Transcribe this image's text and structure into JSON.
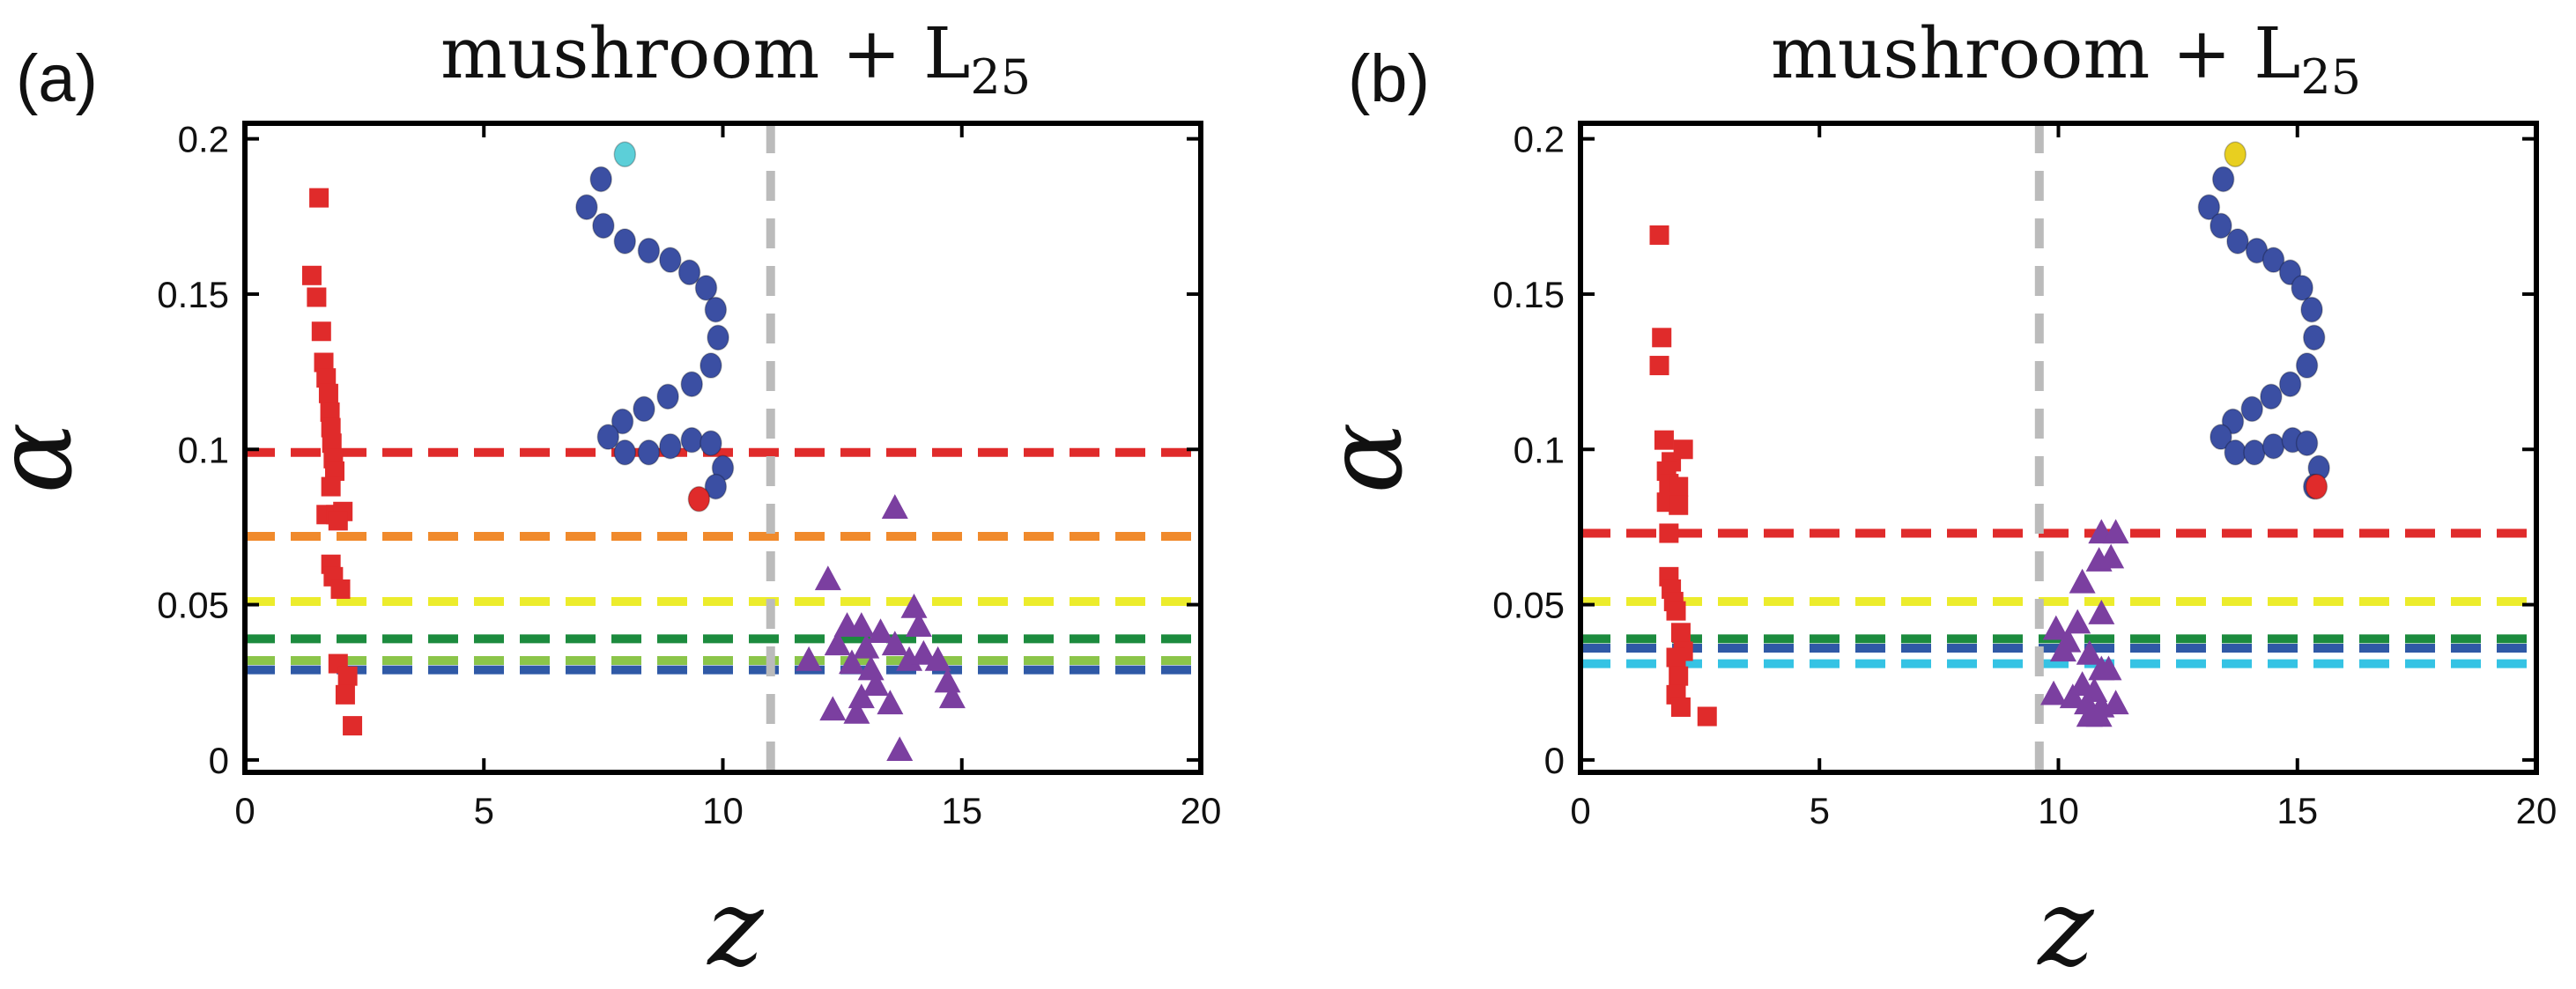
{
  "chart_data": [
    {
      "type": "scatter",
      "panel_label": "(a)",
      "title": "mushroom + L",
      "title_sub": "25",
      "xlabel": "z",
      "ylabel": "α",
      "xlim": [
        0,
        20
      ],
      "ylim": [
        -0.004,
        0.205
      ],
      "xticks": [
        0,
        5,
        10,
        15,
        20
      ],
      "xtick_labels": [
        "0",
        "5",
        "10",
        "15",
        "20"
      ],
      "yticks": [
        0,
        0.05,
        0.1,
        0.15,
        0.2
      ],
      "ytick_labels": [
        "0",
        "0.05",
        "0.1",
        "0.15",
        "0.2"
      ],
      "vline": {
        "x": 11.0,
        "color": "#bbbbbb"
      },
      "hlines": [
        {
          "y": 0.099,
          "color": "#e02b2b"
        },
        {
          "y": 0.072,
          "color": "#f08a2c"
        },
        {
          "y": 0.051,
          "color": "#ecec2c"
        },
        {
          "y": 0.039,
          "color": "#1c8b3e"
        },
        {
          "y": 0.032,
          "color": "#8bc54a"
        },
        {
          "y": 0.029,
          "color": "#2f59a6"
        }
      ],
      "series": [
        {
          "name": "squares",
          "marker": "square",
          "color": "#e02b2b",
          "points": [
            [
              1.55,
              0.181
            ],
            [
              1.4,
              0.156
            ],
            [
              1.5,
              0.149
            ],
            [
              1.6,
              0.138
            ],
            [
              1.65,
              0.128
            ],
            [
              1.7,
              0.123
            ],
            [
              1.75,
              0.118
            ],
            [
              1.78,
              0.112
            ],
            [
              1.8,
              0.107
            ],
            [
              1.82,
              0.102
            ],
            [
              1.85,
              0.097
            ],
            [
              1.88,
              0.093
            ],
            [
              1.8,
              0.088
            ],
            [
              1.7,
              0.079
            ],
            [
              1.9,
              0.079
            ],
            [
              2.05,
              0.08
            ],
            [
              1.95,
              0.077
            ],
            [
              1.8,
              0.063
            ],
            [
              1.85,
              0.059
            ],
            [
              2.0,
              0.055
            ],
            [
              1.95,
              0.031
            ],
            [
              2.15,
              0.027
            ],
            [
              2.1,
              0.021
            ],
            [
              2.25,
              0.011
            ]
          ]
        },
        {
          "name": "triangles",
          "marker": "triangle",
          "color": "#7b3fa0",
          "points": [
            [
              13.6,
              0.081
            ],
            [
              12.2,
              0.058
            ],
            [
              11.8,
              0.032
            ],
            [
              12.6,
              0.043
            ],
            [
              12.4,
              0.037
            ],
            [
              12.9,
              0.043
            ],
            [
              13.0,
              0.036
            ],
            [
              12.7,
              0.031
            ],
            [
              13.1,
              0.029
            ],
            [
              13.3,
              0.041
            ],
            [
              12.3,
              0.016
            ],
            [
              12.8,
              0.015
            ],
            [
              13.2,
              0.024
            ],
            [
              13.5,
              0.018
            ],
            [
              13.6,
              0.037
            ],
            [
              14.0,
              0.049
            ],
            [
              14.1,
              0.043
            ],
            [
              13.9,
              0.032
            ],
            [
              14.2,
              0.034
            ],
            [
              14.5,
              0.032
            ],
            [
              14.7,
              0.025
            ],
            [
              14.8,
              0.02
            ],
            [
              13.7,
              0.003
            ],
            [
              12.9,
              0.02
            ]
          ]
        }
      ],
      "inset": {
        "bead_color": "#3b4fa3",
        "end_top_color": "#5ccfd8",
        "end_bottom_color": "#e02b2b",
        "beads": [
          [
            7.95,
            0.195
          ],
          [
            7.45,
            0.187
          ],
          [
            7.15,
            0.178
          ],
          [
            7.5,
            0.172
          ],
          [
            7.95,
            0.167
          ],
          [
            8.45,
            0.164
          ],
          [
            8.9,
            0.161
          ],
          [
            9.3,
            0.157
          ],
          [
            9.65,
            0.152
          ],
          [
            9.85,
            0.145
          ],
          [
            9.9,
            0.136
          ],
          [
            9.75,
            0.127
          ],
          [
            9.35,
            0.121
          ],
          [
            8.85,
            0.117
          ],
          [
            8.35,
            0.113
          ],
          [
            7.9,
            0.109
          ],
          [
            7.6,
            0.104
          ],
          [
            7.95,
            0.099
          ],
          [
            8.45,
            0.099
          ],
          [
            8.9,
            0.101
          ],
          [
            9.35,
            0.103
          ],
          [
            9.75,
            0.102
          ],
          [
            10.0,
            0.094
          ],
          [
            9.85,
            0.088
          ],
          [
            9.5,
            0.084
          ]
        ]
      }
    },
    {
      "type": "scatter",
      "panel_label": "(b)",
      "title": "mushroom + L",
      "title_sub": "25",
      "xlabel": "z",
      "ylabel": "α",
      "xlim": [
        0,
        20
      ],
      "ylim": [
        -0.004,
        0.205
      ],
      "xticks": [
        0,
        5,
        10,
        15,
        20
      ],
      "xtick_labels": [
        "0",
        "5",
        "10",
        "15",
        "20"
      ],
      "yticks": [
        0,
        0.05,
        0.1,
        0.15,
        0.2
      ],
      "ytick_labels": [
        "0",
        "0.05",
        "0.1",
        "0.15",
        "0.2"
      ],
      "vline": {
        "x": 9.6,
        "color": "#bbbbbb"
      },
      "hlines": [
        {
          "y": 0.073,
          "color": "#e02b2b"
        },
        {
          "y": 0.051,
          "color": "#ecec2c"
        },
        {
          "y": 0.039,
          "color": "#1c8b3e"
        },
        {
          "y": 0.036,
          "color": "#2f59a6"
        },
        {
          "y": 0.031,
          "color": "#35c3e4"
        }
      ],
      "series": [
        {
          "name": "squares",
          "marker": "square",
          "color": "#e02b2b",
          "points": [
            [
              1.65,
              0.169
            ],
            [
              1.7,
              0.136
            ],
            [
              1.65,
              0.127
            ],
            [
              1.75,
              0.103
            ],
            [
              1.9,
              0.096
            ],
            [
              2.15,
              0.1
            ],
            [
              1.8,
              0.093
            ],
            [
              1.85,
              0.089
            ],
            [
              2.05,
              0.088
            ],
            [
              1.8,
              0.083
            ],
            [
              2.05,
              0.082
            ],
            [
              1.85,
              0.073
            ],
            [
              1.85,
              0.059
            ],
            [
              1.9,
              0.055
            ],
            [
              1.95,
              0.051
            ],
            [
              2.0,
              0.048
            ],
            [
              2.1,
              0.041
            ],
            [
              2.15,
              0.035
            ],
            [
              2.0,
              0.033
            ],
            [
              2.05,
              0.027
            ],
            [
              2.0,
              0.021
            ],
            [
              2.1,
              0.017
            ],
            [
              2.65,
              0.014
            ]
          ]
        },
        {
          "name": "triangles",
          "marker": "triangle",
          "color": "#7b3fa0",
          "points": [
            [
              10.9,
              0.073
            ],
            [
              11.2,
              0.073
            ],
            [
              10.85,
              0.064
            ],
            [
              11.1,
              0.065
            ],
            [
              10.5,
              0.057
            ],
            [
              10.9,
              0.047
            ],
            [
              10.4,
              0.044
            ],
            [
              9.95,
              0.042
            ],
            [
              10.2,
              0.038
            ],
            [
              10.1,
              0.035
            ],
            [
              10.65,
              0.034
            ],
            [
              10.9,
              0.029
            ],
            [
              11.05,
              0.029
            ],
            [
              10.5,
              0.024
            ],
            [
              10.75,
              0.022
            ],
            [
              9.9,
              0.021
            ],
            [
              10.3,
              0.02
            ],
            [
              10.6,
              0.018
            ],
            [
              10.9,
              0.017
            ],
            [
              11.2,
              0.018
            ],
            [
              10.65,
              0.014
            ],
            [
              10.85,
              0.014
            ]
          ]
        }
      ],
      "inset": {
        "bead_color": "#3b4fa3",
        "end_top_color": "#e8cf20",
        "end_bottom_color": "#e02b2b",
        "beads": [
          [
            13.7,
            0.195
          ],
          [
            13.45,
            0.187
          ],
          [
            13.15,
            0.178
          ],
          [
            13.4,
            0.172
          ],
          [
            13.75,
            0.167
          ],
          [
            14.15,
            0.164
          ],
          [
            14.5,
            0.161
          ],
          [
            14.85,
            0.157
          ],
          [
            15.1,
            0.152
          ],
          [
            15.3,
            0.145
          ],
          [
            15.35,
            0.136
          ],
          [
            15.2,
            0.127
          ],
          [
            14.85,
            0.121
          ],
          [
            14.45,
            0.117
          ],
          [
            14.05,
            0.113
          ],
          [
            13.65,
            0.109
          ],
          [
            13.4,
            0.104
          ],
          [
            13.7,
            0.099
          ],
          [
            14.1,
            0.099
          ],
          [
            14.5,
            0.101
          ],
          [
            14.9,
            0.103
          ],
          [
            15.2,
            0.102
          ],
          [
            15.45,
            0.094
          ],
          [
            15.35,
            0.088
          ],
          [
            15.4,
            0.088
          ]
        ]
      }
    }
  ]
}
